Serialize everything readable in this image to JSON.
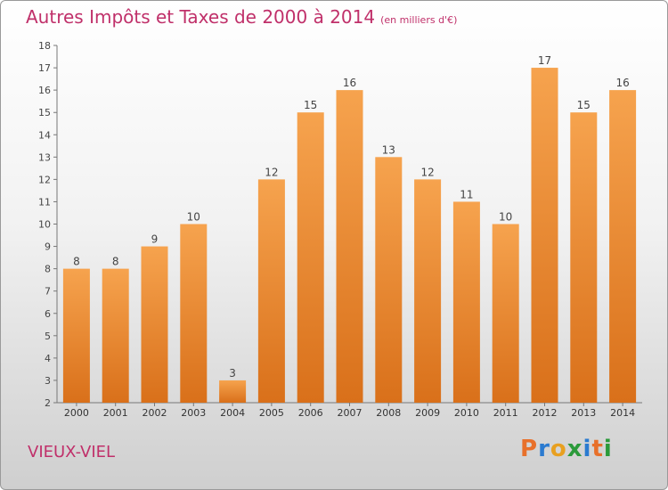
{
  "title": "Autres Impôts et Taxes de 2000 à 2014",
  "title_unit": "(en milliers d'€)",
  "place": "VIEUX-VIEL",
  "brand": "Proxiti",
  "brand_colors": [
    "#e8702a",
    "#2b7bd0",
    "#e8a020",
    "#2b9a3a",
    "#2b7bd0",
    "#e8702a",
    "#2b9a3a"
  ],
  "colors": {
    "bar_top": "#f6a34e",
    "bar_bottom": "#d9701a",
    "title": "#c0306a"
  },
  "chart_data": {
    "type": "bar",
    "title": "Autres Impôts et Taxes de 2000 à 2014",
    "categories": [
      "2000",
      "2001",
      "2002",
      "2003",
      "2004",
      "2005",
      "2006",
      "2007",
      "2008",
      "2009",
      "2010",
      "2011",
      "2012",
      "2013",
      "2014"
    ],
    "values": [
      8,
      8,
      9,
      10,
      3,
      12,
      15,
      16,
      13,
      12,
      11,
      10,
      17,
      15,
      16
    ],
    "ylim": [
      2,
      18
    ],
    "yticks": [
      2,
      3,
      4,
      5,
      6,
      7,
      8,
      9,
      10,
      11,
      12,
      13,
      14,
      15,
      16,
      17,
      18
    ],
    "grid": false,
    "data_labels": true
  }
}
